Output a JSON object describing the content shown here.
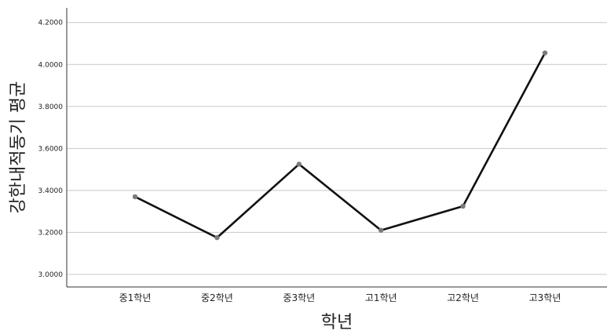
{
  "chart_data": {
    "type": "line",
    "title": "",
    "xlabel": "학년",
    "ylabel": "강한내적동기 평균",
    "categories": [
      "중1학년",
      "중2학년",
      "중3학년",
      "고1학년",
      "고2학년",
      "고3학년"
    ],
    "series": [
      {
        "values": [
          3.37,
          3.175,
          3.525,
          3.21,
          3.325,
          4.055
        ],
        "color": "#111111",
        "marker_color": "#7a7a7a"
      }
    ],
    "ylim": [
      2.94,
      4.27
    ],
    "yticks": [
      3.0,
      3.2,
      3.4,
      3.6,
      3.8,
      4.0,
      4.2
    ],
    "ytick_labels": [
      "3.0000",
      "3.2000",
      "3.4000",
      "3.6000",
      "3.8000",
      "4.0000",
      "4.2000"
    ],
    "grid": true,
    "legend": "none"
  }
}
